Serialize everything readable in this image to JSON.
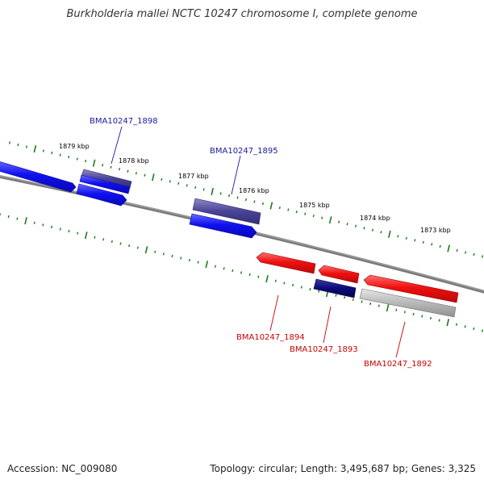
{
  "title": "Burkholderia mallei NCTC 10247 chromosome I, complete genome",
  "footer": {
    "accession": "Accession: NC_009080",
    "summary": "Topology: circular; Length: 3,495,687 bp; Genes: 3,325"
  },
  "colors": {
    "forward_gene": "#1010f0",
    "forward_gene_dark": "#4a4496",
    "reverse_gene": "#f01010",
    "reverse_gene_dark": "#0a0a78",
    "pseudo_gene": "#b8b8b8",
    "backbone": "#808080",
    "tick": "#1a7a1a",
    "label_forward": "#1a1aa0",
    "label_reverse": "#cc0000"
  },
  "kbp_labels": [
    "1879 kbp",
    "1878 kbp",
    "1877 kbp",
    "1876 kbp",
    "1875 kbp",
    "1874 kbp",
    "1873 kbp"
  ],
  "gene_labels": {
    "g1898": "BMA10247_1898",
    "g1895": "BMA10247_1895",
    "g1894": "BMA10247_1894",
    "g1893": "BMA10247_1893",
    "g1892": "BMA10247_1892"
  }
}
